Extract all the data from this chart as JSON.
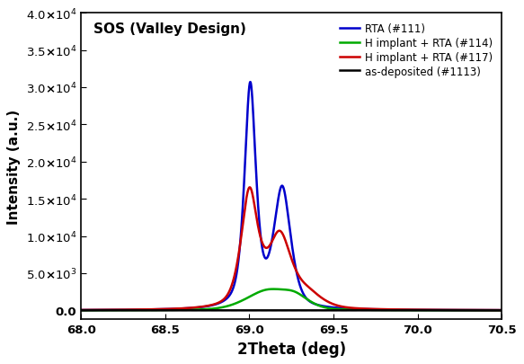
{
  "title": "SOS (Valley Design)",
  "xlabel": "2Theta (deg)",
  "ylabel": "Intensity (a.u.)",
  "xlim": [
    68.0,
    70.5
  ],
  "ylim": [
    -1200,
    40000
  ],
  "yticks": [
    0,
    5000,
    10000,
    15000,
    20000,
    25000,
    30000,
    35000,
    40000
  ],
  "xticks": [
    68.0,
    68.5,
    69.0,
    69.5,
    70.0,
    70.5
  ],
  "legend": [
    {
      "label": "RTA (#111)",
      "color": "#0000CC"
    },
    {
      "label": "H implant + RTA (#114)",
      "color": "#00AA00"
    },
    {
      "label": "H implant + RTA (#117)",
      "color": "#CC0000"
    },
    {
      "label": "as-deposited (#1113)",
      "color": "#000000"
    }
  ],
  "bg_color": "#ffffff"
}
